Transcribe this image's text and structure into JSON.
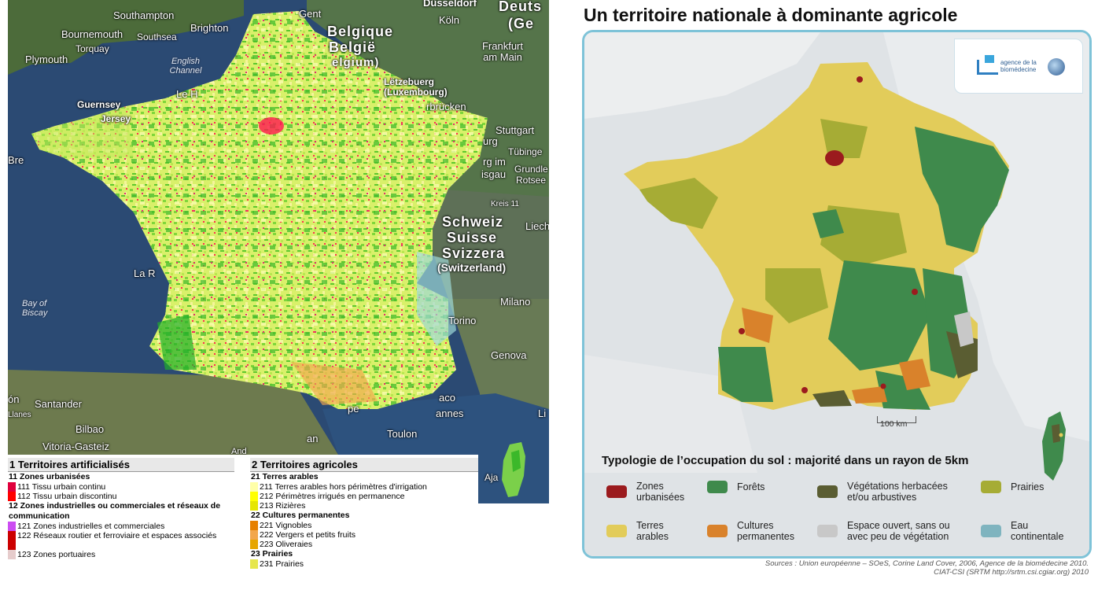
{
  "left_map": {
    "labels": {
      "southampton": "Southampton",
      "bournemouth": "Bournemouth",
      "southsea": "Southsea",
      "brighton": "Brighton",
      "torquay": "Torquay",
      "plymouth": "Plymouth",
      "channel": "English Channel",
      "gent": "Gent",
      "koln": "Köln",
      "dusseldorf": "Düsseldorf",
      "deuts": "Deuts",
      "ge": "(Ge",
      "belgique": "Belgique",
      "belgie": "België",
      "elgium": "elgium)",
      "frankfurt": "Frankfurt am Main",
      "letzebuerg": "Lëtzebuerg (Luxembourg)",
      "bruck": "rbrücken",
      "lehavre": "Le H",
      "guernsey": "Guernsey",
      "jersey": "Jersey",
      "stuttgart": "Stuttgart",
      "tubinge": "Tübinge",
      "urg": "urg",
      "rgim": "rg im",
      "isgau": "isgau",
      "grundle": "Grundle",
      "rotsee": "Rotsee",
      "kreis": "Kreis 11",
      "bre": "Bre",
      "schweiz": "Schweiz",
      "suisse": "Suisse",
      "svizzera": "Svizzera",
      "switzerland": "(Switzerland)",
      "liech": "Liech",
      "lar": "La R",
      "biscay": "Bay of Biscay",
      "milano": "Milano",
      "torino": "Torino",
      "genova": "Genova",
      "on": "ón",
      "santander": "Santander",
      "llanes": "Llanes",
      "bilbao": "Bilbao",
      "vitoria": "Vitoria-Gasteiz",
      "aco": "aco",
      "annes": "annes",
      "toulon": "Toulon",
      "pe": "pe",
      "an": "an",
      "and": "And",
      "aja": "Aja",
      "li": "Li"
    }
  },
  "legend_left": {
    "header": "1 Territoires artificialisés",
    "groups": [
      {
        "title": "11 Zones urbanisées",
        "items": [
          {
            "label": "111 Tissu urbain continu",
            "color": "#e0003c"
          },
          {
            "label": "112 Tissu urbain discontinu",
            "color": "#ff0000"
          }
        ]
      },
      {
        "title": "12 Zones industrielles ou commerciales et réseaux de communication",
        "items": [
          {
            "label": "121 Zones industrielles et commerciales",
            "color": "#cc4df2"
          },
          {
            "label": "122 Réseaux routier et ferroviaire et espaces associés",
            "color": "#cc0000"
          },
          {
            "label": "123 Zones portuaires",
            "color": "#e6cccc"
          }
        ]
      }
    ]
  },
  "legend_right": {
    "header": "2 Territoires agricoles",
    "groups": [
      {
        "title": "21 Terres arables",
        "items": [
          {
            "label": "211 Terres arables hors périmètres d'irrigation",
            "color": "#ffffa8"
          },
          {
            "label": "212 Périmètres irrigués en permanence",
            "color": "#ffff00"
          },
          {
            "label": "213 Rizières",
            "color": "#e6e600"
          }
        ]
      },
      {
        "title": "22 Cultures permanentes",
        "items": [
          {
            "label": "221 Vignobles",
            "color": "#e68000"
          },
          {
            "label": "222 Vergers et petits fruits",
            "color": "#f2a64d"
          },
          {
            "label": "223 Oliveraies",
            "color": "#e6a600"
          }
        ]
      },
      {
        "title": "23 Prairies",
        "items": [
          {
            "label": "231 Prairies",
            "color": "#e6e64d"
          }
        ]
      }
    ]
  },
  "right_map": {
    "title": "Un territoire nationale à dominante agricole",
    "logo_text": "agence de la biomédecine",
    "scale_label": "100 km",
    "legend_title": "Typologie de l’occupation du sol : majorité dans un rayon de 5km",
    "legend": [
      {
        "label": "Zones urbanisées",
        "color": "#9b1b1e"
      },
      {
        "label": "Forêts",
        "color": "#3f8a4c"
      },
      {
        "label": "Végétations herbacées et/ou arbustives",
        "color": "#5a5d32"
      },
      {
        "label": "Prairies",
        "color": "#a6ac35"
      },
      {
        "label": "Terres arables",
        "color": "#e2cc5a"
      },
      {
        "label": "Cultures permanentes",
        "color": "#d9822b"
      },
      {
        "label": "Espace ouvert, sans ou avec peu de végétation",
        "color": "#c8c8c8"
      },
      {
        "label": "Eau continentale",
        "color": "#7fb4bf"
      }
    ],
    "sources_line1": "Sources : Union européenne – SOeS, Corine Land Cover, 2006, Agence de la biomédecine 2010.",
    "sources_line2": "CIAT-CSI (SRTM http://srtm.csi.cgiar.org) 2010"
  }
}
